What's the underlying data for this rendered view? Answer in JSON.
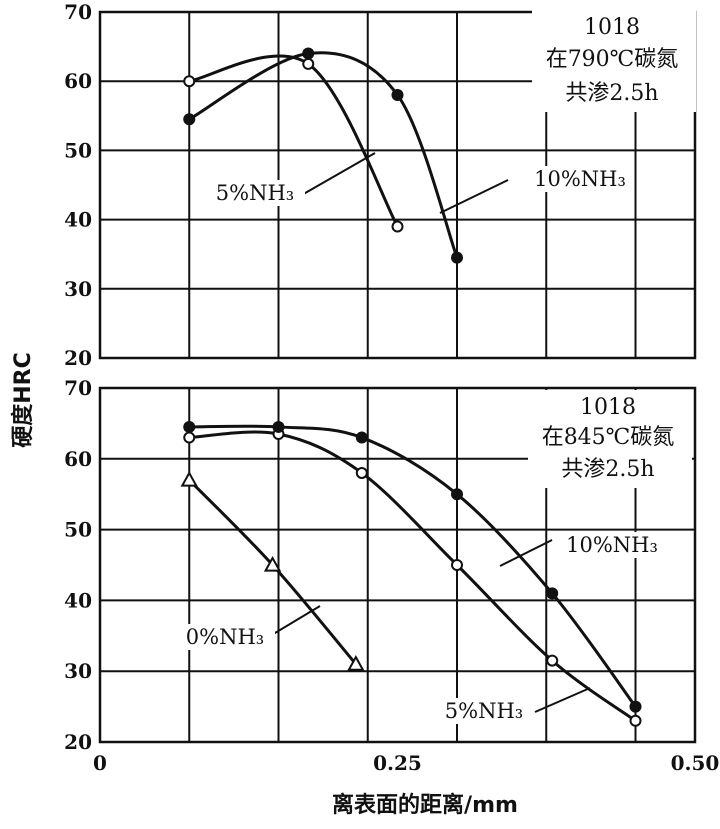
{
  "ylabel": "硬度HRC",
  "xlabel": "离表面的距离/mm",
  "x_ticks": [
    "0",
    "0.25",
    "0.50"
  ],
  "chart_data": [
    {
      "type": "line",
      "annotation": [
        "1018",
        "在790℃碳氮",
        "共渗2.5h"
      ],
      "xlim": [
        0,
        0.5
      ],
      "ylim": [
        20,
        70
      ],
      "y_ticks": [
        "20",
        "30",
        "40",
        "50",
        "60",
        "70"
      ],
      "series": [
        {
          "name": "5%NH₃",
          "marker": "open-circle",
          "x": [
            0.075,
            0.175,
            0.25
          ],
          "y": [
            60,
            62.5,
            39
          ]
        },
        {
          "name": "10%NH₃",
          "marker": "filled-circle",
          "x": [
            0.075,
            0.175,
            0.25,
            0.3
          ],
          "y": [
            54.5,
            64,
            58,
            34.5
          ]
        }
      ]
    },
    {
      "type": "line",
      "annotation": [
        "1018",
        "在845℃碳氮",
        "共渗2.5h"
      ],
      "xlim": [
        0,
        0.5
      ],
      "ylim": [
        20,
        70
      ],
      "y_ticks": [
        "20",
        "30",
        "40",
        "50",
        "60",
        "70"
      ],
      "series": [
        {
          "name": "0%NH₃",
          "marker": "open-triangle",
          "x": [
            0.075,
            0.145,
            0.215
          ],
          "y": [
            57,
            45,
            31
          ]
        },
        {
          "name": "5%NH₃",
          "marker": "open-circle",
          "x": [
            0.075,
            0.15,
            0.22,
            0.3,
            0.38,
            0.45
          ],
          "y": [
            63,
            63.5,
            58,
            45,
            31.5,
            23
          ]
        },
        {
          "name": "10%NH₃",
          "marker": "filled-circle",
          "x": [
            0.075,
            0.15,
            0.22,
            0.3,
            0.38,
            0.45
          ],
          "y": [
            64.5,
            64.5,
            63,
            55,
            41,
            25
          ]
        }
      ]
    }
  ]
}
